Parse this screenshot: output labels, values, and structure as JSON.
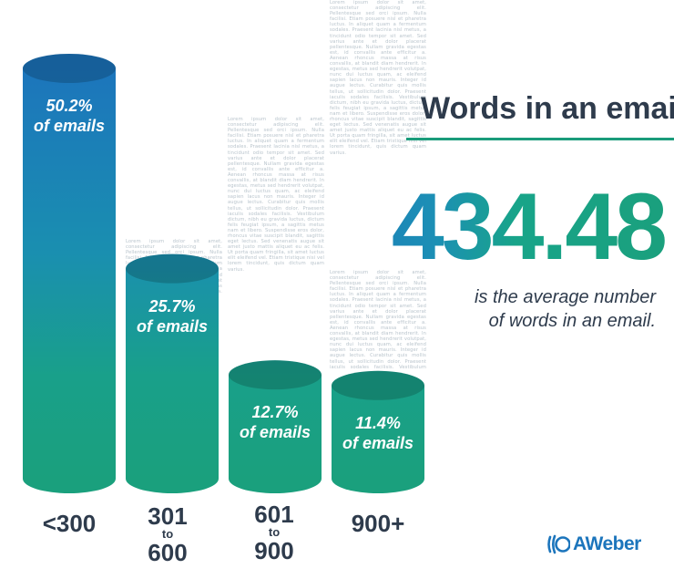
{
  "title": "Words in an email",
  "headline_value": "434.48",
  "subtitle_line1": "is the average number",
  "subtitle_line2": "of words in an email.",
  "logo_text": "AWeber",
  "colors": {
    "blue": "#1c75bc",
    "green": "#1aa07d",
    "text_dark": "#2e3b4c",
    "lorem_gray": "#b9c4cc"
  },
  "icons": [
    "aweber-logo-icon"
  ],
  "filler_text": "Lorem ipsum dolor sit amet, consectetur adipiscing elit. Pellentesque sed orci ipsum. Nulla facilisi. Etiam posuere nisl et pharetra luctus. In aliquet quam a fermentum sodales. Praesent lacinia nisl metus, a tincidunt odio tempor sit amet. Sed varius ante et dolor placerat pellentesque. Nullam gravida egestas est, id convallis ante efficitur a. Aenean rhoncus massa at risus convallis, at blandit diam hendrerit. In egestas, metus sed hendrerit volutpat, nunc dui luctus quam, ac eleifend sapien lacus non mauris. Integer id augue lectus. Curabitur quis mollis tellus, ut sollicitudin dolor. Praesent iaculis sodales facilisis. Vestibulum dictum, nibh eu gravida luctus, dictum felis feugiat ipsum, a sagittis metus nam et libero. Suspendisse eros dolor, rhoncus vitae suscipit blandit, sagittis eget lectus. Sed venenatis augue sit amet justo mattis aliquet eu ac felis. Ut porta quam fringilla, sit amet luctus elit eleifend vel. Etiam tristique nisi vel lorem tincidunt, quis dictum quam varius.",
  "chart_data": {
    "type": "bar",
    "categories": [
      "<300",
      "301 to 600",
      "601 to 900",
      "900+"
    ],
    "values": [
      50.2,
      25.7,
      12.7,
      11.4
    ],
    "unit": "% of emails",
    "category_labels": [
      {
        "main": "<300"
      },
      {
        "top": "301",
        "mid": "to",
        "bottom": "600"
      },
      {
        "top": "601",
        "mid": "to",
        "bottom": "900"
      },
      {
        "main": "900+"
      }
    ],
    "bar_labels": [
      {
        "pct": "50.2%",
        "of": "of emails"
      },
      {
        "pct": "25.7%",
        "of": "of emails"
      },
      {
        "pct": "12.7%",
        "of": "of emails"
      },
      {
        "pct": "11.4%",
        "of": "of emails"
      }
    ],
    "ylim": [
      0,
      50.2
    ],
    "grid": false,
    "legend": "none"
  }
}
